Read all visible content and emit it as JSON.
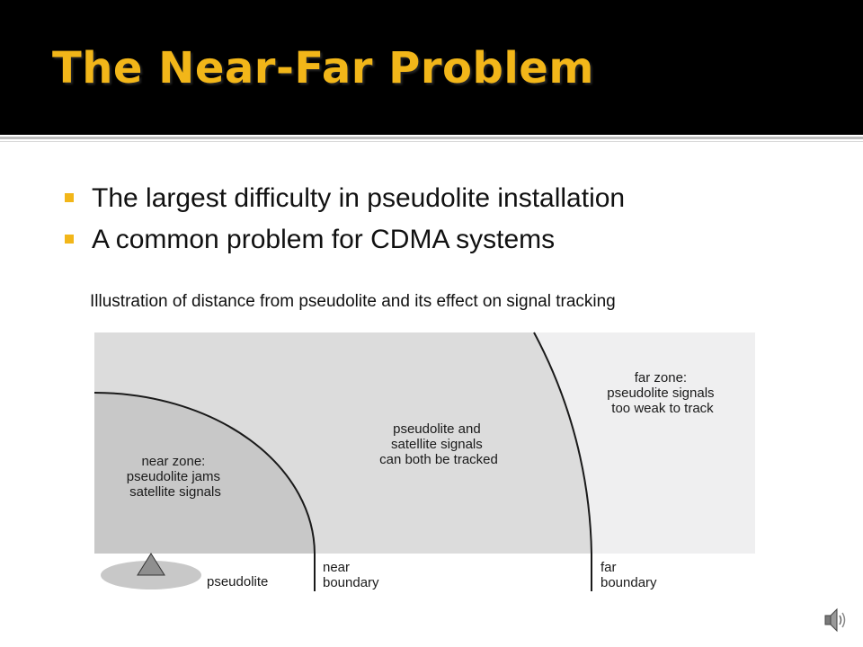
{
  "slide": {
    "title": "The Near-Far Problem",
    "bullets": [
      "The largest difficulty in pseudolite installation",
      "A common problem for CDMA systems"
    ],
    "caption": "Illustration of distance from pseudolite and its effect on signal tracking"
  },
  "diagram": {
    "near_zone": [
      "near zone:",
      "pseudolite jams",
      "satellite signals"
    ],
    "middle_zone": [
      "pseudolite and",
      "satellite signals",
      "can both be tracked"
    ],
    "far_zone": [
      "far zone:",
      "pseudolite signals",
      "too weak to track"
    ],
    "pseudolite_label": "pseudolite",
    "near_boundary": [
      "near",
      "boundary"
    ],
    "far_boundary": [
      "far",
      "boundary"
    ]
  },
  "colors": {
    "title": "#f2b619",
    "title_bar": "#000000",
    "bullet_marker": "#f2b619",
    "near_zone_fill": "#c8c8c8",
    "middle_zone_fill": "#dcdcdc",
    "far_zone_fill": "#efeff0"
  },
  "icons": {
    "audio": "speaker-icon"
  }
}
